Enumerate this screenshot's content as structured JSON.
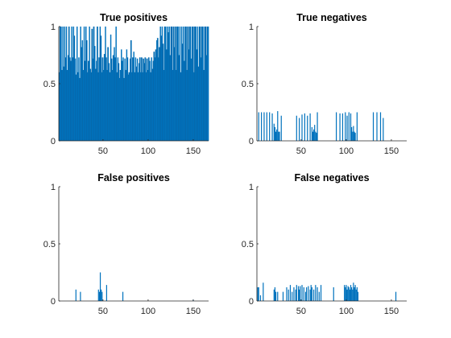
{
  "chart_data": [
    {
      "type": "bar",
      "title": "True positives",
      "xlabel": "",
      "ylabel": "",
      "xlim": [
        1,
        167
      ],
      "ylim": [
        0,
        1
      ],
      "xticks": [
        50,
        100,
        150
      ],
      "yticks": [
        0,
        0.5,
        1
      ],
      "color": "#0072BD",
      "values": [
        0.6,
        1,
        1,
        0.62,
        1,
        0.65,
        1,
        0.73,
        1,
        0.62,
        0.75,
        1,
        0.73,
        0.7,
        1,
        0.73,
        1,
        0.92,
        0.72,
        0.58,
        1,
        0.6,
        0.73,
        0.55,
        1,
        0.82,
        0.88,
        0.62,
        1,
        0.7,
        1,
        0.88,
        0.6,
        0.7,
        1,
        0.63,
        0.6,
        0.98,
        0.72,
        1,
        0.83,
        0.63,
        0.7,
        1,
        0.6,
        0.73,
        1,
        0.92,
        0.6,
        0.73,
        0.62,
        0.76,
        1,
        0.73,
        0.62,
        0.82,
        0.68,
        0.6,
        0.93,
        0.72,
        0.62,
        0.75,
        0.82,
        0.73,
        1,
        0.6,
        0.73,
        0.68,
        0.55,
        0.62,
        0.8,
        0.7,
        0.73,
        0.55,
        0.72,
        0.62,
        0.8,
        0.73,
        0.58,
        0.6,
        0.72,
        0.88,
        0.6,
        0.73,
        0.78,
        0.6,
        0.73,
        0.65,
        0.72,
        0.6,
        0.68,
        0.73,
        0.6,
        0.73,
        0.6,
        0.72,
        0.68,
        0.73,
        0.6,
        0.72,
        0.62,
        0.73,
        0.7,
        0.6,
        0.73,
        0.63,
        0.7,
        0.78,
        0.73,
        0.8,
        0.88,
        0.9,
        0.73,
        0.82,
        1,
        0.92,
        1,
        0.85,
        0.62,
        1,
        1,
        0.8,
        1,
        0.95,
        1,
        0.75,
        1,
        1,
        0.62,
        1,
        0.82,
        1,
        0.62,
        1,
        1,
        0.75,
        1,
        0.6,
        1,
        0.85,
        1,
        0.7,
        1,
        1,
        0.62,
        1,
        0.8,
        1,
        1,
        0.72,
        1,
        1,
        0.6,
        1,
        1,
        0.8,
        1,
        0.65,
        1,
        1,
        0.73,
        1,
        1,
        0.62,
        1,
        1,
        0.75,
        1,
        1
      ]
    },
    {
      "type": "bar",
      "title": "True negatives",
      "xlabel": "",
      "ylabel": "",
      "xlim": [
        1,
        167
      ],
      "ylim": [
        0,
        1
      ],
      "xticks": [
        50,
        100,
        150
      ],
      "yticks": [
        0,
        0.5,
        1
      ],
      "color": "#0072BD",
      "points": [
        [
          3,
          0.25
        ],
        [
          6,
          0.25
        ],
        [
          9,
          0.25
        ],
        [
          12,
          0.25
        ],
        [
          15,
          0.25
        ],
        [
          18,
          0.24
        ],
        [
          20,
          0.15
        ],
        [
          21,
          0.12
        ],
        [
          22,
          0.08
        ],
        [
          23,
          0.1
        ],
        [
          24,
          0.26
        ],
        [
          25,
          0.08
        ],
        [
          26,
          0.08
        ],
        [
          28,
          0.22
        ],
        [
          45,
          0.22
        ],
        [
          48,
          0.2
        ],
        [
          51,
          0.23
        ],
        [
          54,
          0.24
        ],
        [
          57,
          0.22
        ],
        [
          60,
          0.24
        ],
        [
          62,
          0.12
        ],
        [
          63,
          0.08
        ],
        [
          64,
          0.1
        ],
        [
          65,
          0.14
        ],
        [
          66,
          0.08
        ],
        [
          67,
          0.07
        ],
        [
          68,
          0.25
        ],
        [
          89,
          0.25
        ],
        [
          93,
          0.24
        ],
        [
          96,
          0.24
        ],
        [
          99,
          0.25
        ],
        [
          101,
          0.22
        ],
        [
          103,
          0.25
        ],
        [
          105,
          0.24
        ],
        [
          106,
          0.12
        ],
        [
          107,
          0.08
        ],
        [
          108,
          0.13
        ],
        [
          109,
          0.08
        ],
        [
          110,
          0.07
        ],
        [
          112,
          0.25
        ],
        [
          130,
          0.25
        ],
        [
          134,
          0.25
        ],
        [
          138,
          0.25
        ],
        [
          141,
          0.2
        ]
      ]
    },
    {
      "type": "bar",
      "title": "False positives",
      "xlabel": "",
      "ylabel": "",
      "xlim": [
        1,
        167
      ],
      "ylim": [
        0,
        1
      ],
      "xticks": [
        50,
        100,
        150
      ],
      "yticks": [
        0,
        0.5,
        1
      ],
      "color": "#0072BD",
      "points": [
        [
          20,
          0.1
        ],
        [
          25,
          0.08
        ],
        [
          45,
          0.1
        ],
        [
          46,
          0.08
        ],
        [
          47,
          0.25
        ],
        [
          48,
          0.1
        ],
        [
          49,
          0.08
        ],
        [
          54,
          0.14
        ],
        [
          72,
          0.08
        ],
        [
          150,
          0.01
        ]
      ]
    },
    {
      "type": "bar",
      "title": "False negatives",
      "xlabel": "",
      "ylabel": "",
      "xlim": [
        1,
        167
      ],
      "ylim": [
        0,
        1
      ],
      "xticks": [
        50,
        100,
        150
      ],
      "yticks": [
        0,
        0.5,
        1
      ],
      "color": "#0072BD",
      "points": [
        [
          2,
          0.12
        ],
        [
          3,
          0.12
        ],
        [
          5,
          0.05
        ],
        [
          8,
          0.16
        ],
        [
          20,
          0.1
        ],
        [
          21,
          0.12
        ],
        [
          22,
          0.08
        ],
        [
          24,
          0.08
        ],
        [
          30,
          0.08
        ],
        [
          34,
          0.12
        ],
        [
          36,
          0.1
        ],
        [
          38,
          0.14
        ],
        [
          40,
          0.08
        ],
        [
          42,
          0.12
        ],
        [
          44,
          0.1
        ],
        [
          45,
          0.14
        ],
        [
          47,
          0.13
        ],
        [
          48,
          0.1
        ],
        [
          49,
          0.13
        ],
        [
          51,
          0.14
        ],
        [
          53,
          0.12
        ],
        [
          55,
          0.08
        ],
        [
          56,
          0.12
        ],
        [
          58,
          0.13
        ],
        [
          60,
          0.1
        ],
        [
          61,
          0.14
        ],
        [
          62,
          0.12
        ],
        [
          64,
          0.1
        ],
        [
          66,
          0.14
        ],
        [
          68,
          0.12
        ],
        [
          70,
          0.08
        ],
        [
          72,
          0.14
        ],
        [
          86,
          0.12
        ],
        [
          98,
          0.14
        ],
        [
          99,
          0.12
        ],
        [
          100,
          0.14
        ],
        [
          101,
          0.1
        ],
        [
          102,
          0.13
        ],
        [
          103,
          0.12
        ],
        [
          104,
          0.1
        ],
        [
          105,
          0.14
        ],
        [
          106,
          0.12
        ],
        [
          107,
          0.1
        ],
        [
          108,
          0.16
        ],
        [
          109,
          0.12
        ],
        [
          110,
          0.14
        ],
        [
          111,
          0.1
        ],
        [
          112,
          0.12
        ],
        [
          113,
          0.08
        ],
        [
          155,
          0.08
        ]
      ]
    }
  ]
}
